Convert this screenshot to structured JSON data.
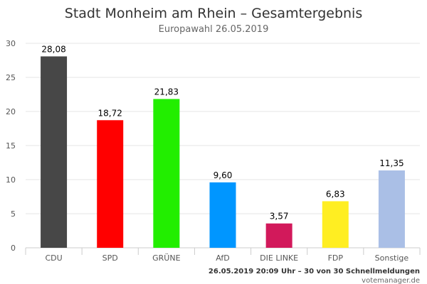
{
  "chart_data": {
    "type": "bar",
    "title": "Stadt Monheim am Rhein – Gesamtergebnis",
    "subtitle": "Europawahl 26.05.2019",
    "xlabel": "",
    "ylabel": "",
    "ylim": [
      0,
      30
    ],
    "yticks": [
      "0",
      "5",
      "10",
      "15",
      "20",
      "25",
      "30"
    ],
    "categories": [
      "CDU",
      "SPD",
      "GRÜNE",
      "AfD",
      "DIE LINKE",
      "FDP",
      "Sonstige"
    ],
    "values": [
      28.08,
      18.72,
      21.83,
      9.6,
      3.57,
      6.83,
      11.35
    ],
    "value_labels": [
      "28,08",
      "18,72",
      "21,83",
      "9,60",
      "3,57",
      "6,83",
      "11,35"
    ],
    "colors": [
      "#474747",
      "#ff0000",
      "#22ee00",
      "#0096ff",
      "#d2195b",
      "#ffee22",
      "#aabfe6"
    ],
    "grid": true,
    "legend": "none"
  },
  "footer": {
    "status": "26.05.2019 20:09 Uhr – 30 von 30 Schnellmeldungen",
    "source": "votemanager.de"
  }
}
